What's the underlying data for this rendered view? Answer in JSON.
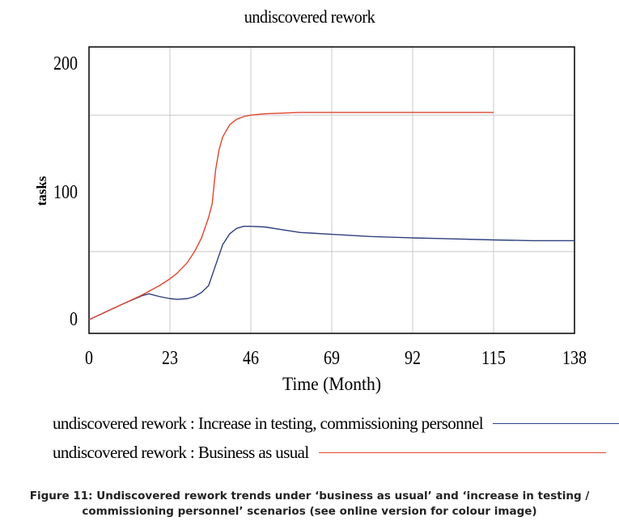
{
  "chart_data": {
    "type": "line",
    "title": "undiscovered rework",
    "xlabel": "Time (Month)",
    "ylabel": "tasks",
    "xlim": [
      0,
      138
    ],
    "ylim": [
      -10,
      200
    ],
    "x_ticks": [
      "0",
      "23",
      "46",
      "69",
      "92",
      "115",
      "138"
    ],
    "y_ticks": [
      "0",
      "100",
      "200"
    ],
    "grid": true,
    "legend_position": "bottom",
    "series": [
      {
        "name": "undiscovered rework : Increase in testing, commissioning personnel",
        "color": "#2e3f7f",
        "x": [
          0,
          5,
          10,
          15,
          17,
          20,
          23,
          25,
          28,
          30,
          32,
          34,
          36,
          38,
          40,
          42,
          44,
          46,
          50,
          55,
          60,
          70,
          80,
          92,
          100,
          115,
          126,
          138
        ],
        "y": [
          0,
          6,
          12,
          17.5,
          19,
          17,
          15.5,
          15,
          15.5,
          17,
          20,
          25,
          40,
          55,
          63,
          67,
          68.5,
          68.5,
          68,
          66,
          64,
          62.5,
          61,
          60,
          59.5,
          58.5,
          58,
          58
        ]
      },
      {
        "name": "undiscovered rework : Business as usual",
        "color": "#e0452e",
        "x": [
          0,
          5,
          10,
          15,
          20,
          23,
          25,
          28,
          30,
          32,
          34,
          35,
          36,
          37,
          38,
          40,
          42,
          44,
          46,
          50,
          55,
          60,
          69,
          80,
          92,
          105,
          115
        ],
        "y": [
          0,
          6,
          12,
          18,
          25,
          30,
          34,
          42,
          50,
          60,
          75,
          85,
          110,
          125,
          134,
          143,
          147,
          149,
          150,
          151,
          151.5,
          152,
          152,
          152,
          152,
          152,
          152
        ]
      }
    ]
  },
  "caption": {
    "line1": "Figure 11: Undiscovered rework trends under ‘business as usual’ and ‘increase in testing /",
    "line2": "commissioning personnel’ scenarios (see online version for colour image)"
  }
}
